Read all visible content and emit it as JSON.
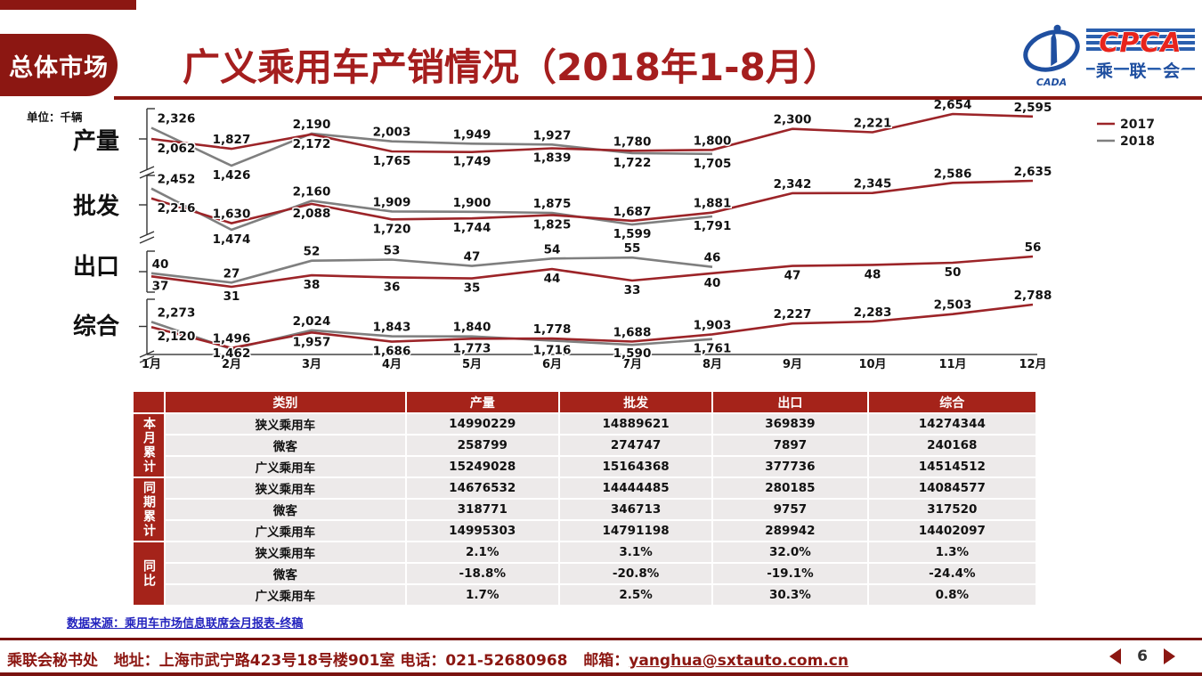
{
  "header": {
    "tab_label": "总体市场",
    "title": "广义乘用车产销情况（2018年1-8月）",
    "logo": {
      "cada": "CADA",
      "cpca": "CPCA",
      "chinese": "乘 联 会"
    }
  },
  "chart": {
    "unit_label": "单位：千辆",
    "months": [
      "1月",
      "2月",
      "3月",
      "4月",
      "5月",
      "6月",
      "7月",
      "8月",
      "9月",
      "10月",
      "11月",
      "12月"
    ],
    "legend": [
      {
        "label": "2017",
        "color": "#9C2428"
      },
      {
        "label": "2018",
        "color": "#7F7F7F"
      }
    ]
  },
  "chart_data": [
    {
      "type": "line",
      "title": "产量",
      "x": [
        "1月",
        "2月",
        "3月",
        "4月",
        "5月",
        "6月",
        "7月",
        "8月",
        "9月",
        "10月",
        "11月",
        "12月"
      ],
      "series": [
        {
          "name": "2017",
          "values": [
            2062,
            1827,
            2172,
            1765,
            1749,
            1839,
            1780,
            1800,
            2300,
            2221,
            2654,
            2595
          ]
        },
        {
          "name": "2018",
          "values": [
            2326,
            1426,
            2190,
            2003,
            1949,
            1927,
            1722,
            1705
          ]
        }
      ],
      "labels_top": [
        "2,326",
        "1,827",
        "2,190",
        "2,003",
        "1,949",
        "1,927",
        "1,780",
        "1,800",
        "2,300",
        "2,221",
        "2,654",
        "2,595"
      ],
      "labels_bottom": [
        "2,062",
        "1,426",
        "2,172",
        "1,765",
        "1,749",
        "1,839",
        "1,722",
        "1,705",
        "",
        "",
        "",
        ""
      ]
    },
    {
      "type": "line",
      "title": "批发",
      "x": [
        "1月",
        "2月",
        "3月",
        "4月",
        "5月",
        "6月",
        "7月",
        "8月",
        "9月",
        "10月",
        "11月",
        "12月"
      ],
      "series": [
        {
          "name": "2017",
          "values": [
            2216,
            1630,
            2088,
            1720,
            1744,
            1825,
            1687,
            1881,
            2342,
            2345,
            2586,
            2635
          ]
        },
        {
          "name": "2018",
          "values": [
            2452,
            1474,
            2160,
            1909,
            1900,
            1875,
            1599,
            1791
          ]
        }
      ],
      "labels_top": [
        "2,452",
        "1,630",
        "2,160",
        "1,909",
        "1,900",
        "1,875",
        "1,687",
        "1,881",
        "2,342",
        "2,345",
        "2,586",
        "2,635"
      ],
      "labels_bottom": [
        "2,216",
        "1,474",
        "2,088",
        "1,720",
        "1,744",
        "1,825",
        "1,599",
        "1,791",
        "",
        "",
        "",
        ""
      ]
    },
    {
      "type": "line",
      "title": "出口",
      "x": [
        "1月",
        "2月",
        "3月",
        "4月",
        "5月",
        "6月",
        "7月",
        "8月",
        "9月",
        "10月",
        "11月",
        "12月"
      ],
      "series": [
        {
          "name": "2017",
          "values": [
            37,
            27,
            38,
            36,
            35,
            44,
            33,
            40,
            47,
            48,
            50,
            56
          ]
        },
        {
          "name": "2018",
          "values": [
            40,
            31,
            52,
            53,
            47,
            54,
            55,
            46
          ]
        }
      ],
      "labels_top": [
        "40",
        "27",
        "52",
        "53",
        "47",
        "54",
        "55",
        "46",
        "",
        "",
        "",
        "56"
      ],
      "labels_bottom": [
        "37",
        "31",
        "38",
        "36",
        "35",
        "44",
        "33",
        "40",
        "47",
        "48",
        "50",
        ""
      ]
    },
    {
      "type": "line",
      "title": "综合",
      "x": [
        "1月",
        "2月",
        "3月",
        "4月",
        "5月",
        "6月",
        "7月",
        "8月",
        "9月",
        "10月",
        "11月",
        "12月"
      ],
      "series": [
        {
          "name": "2017",
          "values": [
            2120,
            1496,
            1957,
            1686,
            1773,
            1778,
            1688,
            1903,
            2227,
            2283,
            2503,
            2788
          ]
        },
        {
          "name": "2018",
          "values": [
            2273,
            1462,
            2024,
            1843,
            1840,
            1716,
            1590,
            1761
          ]
        }
      ],
      "labels_top": [
        "2,273",
        "1,496",
        "2,024",
        "1,843",
        "1,840",
        "1,778",
        "1,688",
        "1,903",
        "2,227",
        "2,283",
        "2,503",
        "2,788"
      ],
      "labels_bottom": [
        "2,120",
        "1,462",
        "1,957",
        "1,686",
        "1,773",
        "1,716",
        "1,590",
        "1,761",
        "",
        "",
        "",
        ""
      ]
    }
  ],
  "table": {
    "headers": [
      "类别",
      "产量",
      "批发",
      "出口",
      "综合"
    ],
    "groups": [
      {
        "label": "本月累计",
        "rows": [
          [
            "狭义乘用车",
            "14990229",
            "14889621",
            "369839",
            "14274344"
          ],
          [
            "微客",
            "258799",
            "274747",
            "7897",
            "240168"
          ],
          [
            "广义乘用车",
            "15249028",
            "15164368",
            "377736",
            "14514512"
          ]
        ]
      },
      {
        "label": "同期累计",
        "rows": [
          [
            "狭义乘用车",
            "14676532",
            "14444485",
            "280185",
            "14084577"
          ],
          [
            "微客",
            "318771",
            "346713",
            "9757",
            "317520"
          ],
          [
            "广义乘用车",
            "14995303",
            "14791198",
            "289942",
            "14402097"
          ]
        ]
      },
      {
        "label": "同比",
        "rows": [
          [
            "狭义乘用车",
            "2.1%",
            "3.1%",
            "32.0%",
            "1.3%"
          ],
          [
            "微客",
            "-18.8%",
            "-20.8%",
            "-19.1%",
            "-24.4%"
          ],
          [
            "广义乘用车",
            "1.7%",
            "2.5%",
            "30.3%",
            "0.8%"
          ]
        ]
      }
    ]
  },
  "source_note": "数据来源：乘用车市场信息联席会月报表-终稿",
  "footer": {
    "org": "乘联会秘书处",
    "address": "地址：上海市武宁路423号18号楼901室",
    "phone": "电话：021-52680968",
    "email_label": "邮箱：",
    "email": "yanghua@sxtauto.com.cn",
    "page": "6"
  },
  "colors": {
    "maroon": "#8C1712",
    "table_red": "#A5231A",
    "title_red": "#A51E1E",
    "line_2017": "#9C2428",
    "line_2018": "#7F7F7F",
    "row_bg": "#EDEAEA",
    "source_blue": "#2323BE"
  }
}
